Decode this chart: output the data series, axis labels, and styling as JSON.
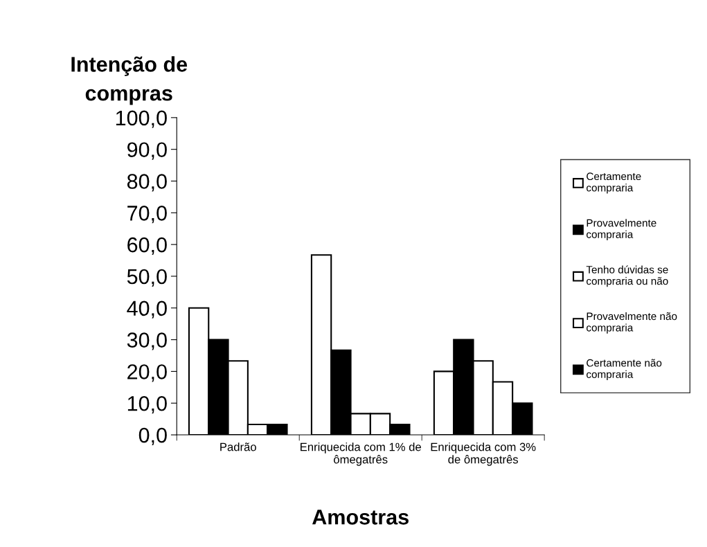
{
  "chart_data": {
    "type": "bar",
    "ylabel": "Intenção de\ncompras",
    "xlabel": "Amostras",
    "categories": [
      "Padrão",
      "Enriquecida com 1% de\nômegatrês",
      "Enriquecida com 3%\nde ômegatrês"
    ],
    "series": [
      {
        "name": "Certamente\ncompraria",
        "color": "#ffffff",
        "values": [
          40.0,
          56.7,
          20.0
        ]
      },
      {
        "name": "Provavelmente\ncompraria",
        "color": "#000000",
        "values": [
          30.0,
          26.7,
          30.0
        ]
      },
      {
        "name": "Tenho dúvidas se\ncompraria ou não",
        "color": "#ffffff",
        "values": [
          23.3,
          6.7,
          23.3
        ]
      },
      {
        "name": "Provavelmente não\ncompraria",
        "color": "#ffffff",
        "values": [
          3.3,
          6.7,
          16.7
        ]
      },
      {
        "name": "Certamente não\ncompraria",
        "color": "#000000",
        "values": [
          3.3,
          3.3,
          10.0
        ]
      }
    ],
    "ylim": [
      0,
      100
    ],
    "yticks": [
      {
        "value": 0,
        "label": "0,0"
      },
      {
        "value": 10,
        "label": "10,0"
      },
      {
        "value": 20,
        "label": "20,0"
      },
      {
        "value": 30,
        "label": "30,0"
      },
      {
        "value": 40,
        "label": "40,0"
      },
      {
        "value": 50,
        "label": "50,0"
      },
      {
        "value": 60,
        "label": "60,0"
      },
      {
        "value": 70,
        "label": "70,0"
      },
      {
        "value": 80,
        "label": "80,0"
      },
      {
        "value": 90,
        "label": "90,0"
      },
      {
        "value": 100,
        "label": "100,0"
      }
    ],
    "legend": "right",
    "grid": false
  }
}
